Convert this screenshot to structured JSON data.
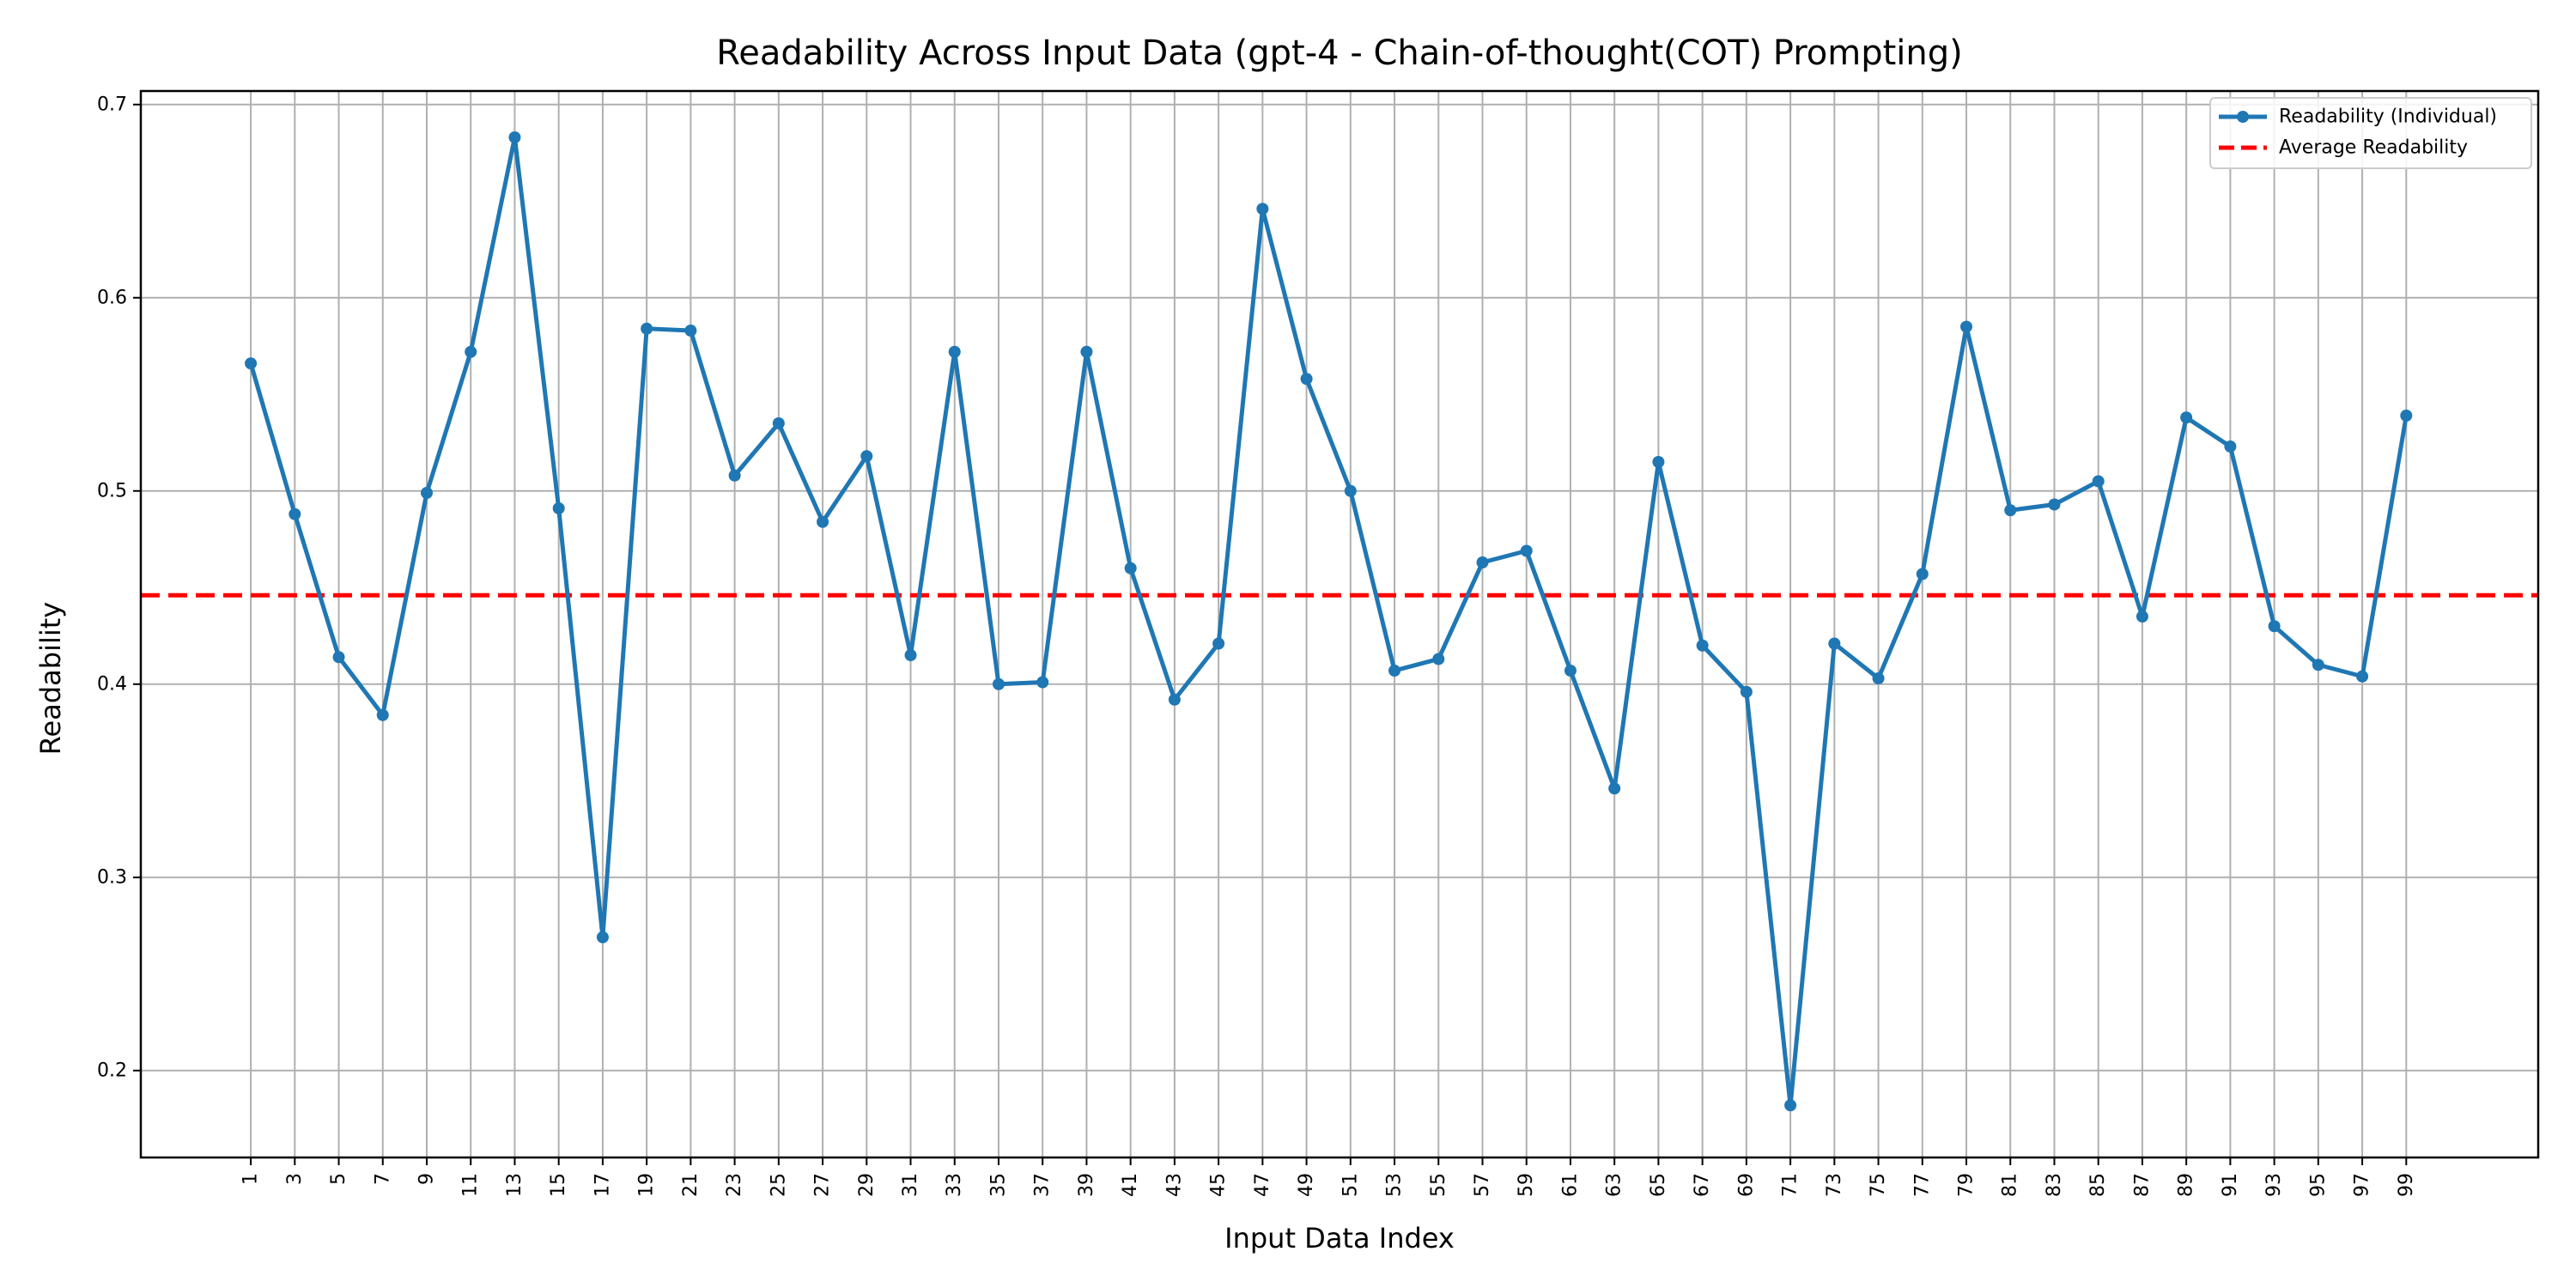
{
  "chart_data": {
    "type": "line",
    "title": "Readability Across Input Data (gpt-4 - Chain-of-thought(COT) Prompting)",
    "xlabel": "Input Data Index",
    "ylabel": "Readability",
    "x": [
      1,
      3,
      5,
      7,
      9,
      11,
      13,
      15,
      17,
      19,
      21,
      23,
      25,
      27,
      29,
      31,
      33,
      35,
      37,
      39,
      41,
      43,
      45,
      47,
      49,
      51,
      53,
      55,
      57,
      59,
      61,
      63,
      65,
      67,
      69,
      71,
      73,
      75,
      77,
      79,
      81,
      83,
      85,
      87,
      89,
      91,
      93,
      95,
      97,
      99
    ],
    "x_ticks": [
      "1",
      "3",
      "5",
      "7",
      "9",
      "11",
      "13",
      "15",
      "17",
      "19",
      "21",
      "23",
      "25",
      "27",
      "29",
      "31",
      "33",
      "35",
      "37",
      "39",
      "41",
      "43",
      "45",
      "47",
      "49",
      "51",
      "53",
      "55",
      "57",
      "59",
      "61",
      "63",
      "65",
      "67",
      "69",
      "71",
      "73",
      "75",
      "77",
      "79",
      "81",
      "83",
      "85",
      "87",
      "89",
      "91",
      "93",
      "95",
      "97",
      "99"
    ],
    "y_ticks": [
      "0.2",
      "0.3",
      "0.4",
      "0.5",
      "0.6",
      "0.7"
    ],
    "xlim": [
      -4.0,
      105.0
    ],
    "ylim": [
      0.155,
      0.707
    ],
    "grid": true,
    "legend_position": "top-right",
    "series": [
      {
        "name": "Readability (Individual)",
        "color": "#1f77b4",
        "values": [
          0.566,
          0.488,
          0.414,
          0.384,
          0.499,
          0.572,
          0.683,
          0.491,
          0.269,
          0.584,
          0.583,
          0.508,
          0.535,
          0.484,
          0.518,
          0.415,
          0.572,
          0.4,
          0.401,
          0.572,
          0.46,
          0.392,
          0.421,
          0.646,
          0.558,
          0.5,
          0.407,
          0.413,
          0.463,
          0.469,
          0.407,
          0.346,
          0.515,
          0.42,
          0.396,
          0.182,
          0.421,
          0.403,
          0.457,
          0.585,
          0.49,
          0.493,
          0.505,
          0.435,
          0.538,
          0.523,
          0.43,
          0.41,
          0.404,
          0.539
        ]
      }
    ],
    "reference_lines": [
      {
        "name": "Average Readability",
        "color": "#ff0000",
        "value": 0.446,
        "style": "dashed"
      }
    ]
  }
}
